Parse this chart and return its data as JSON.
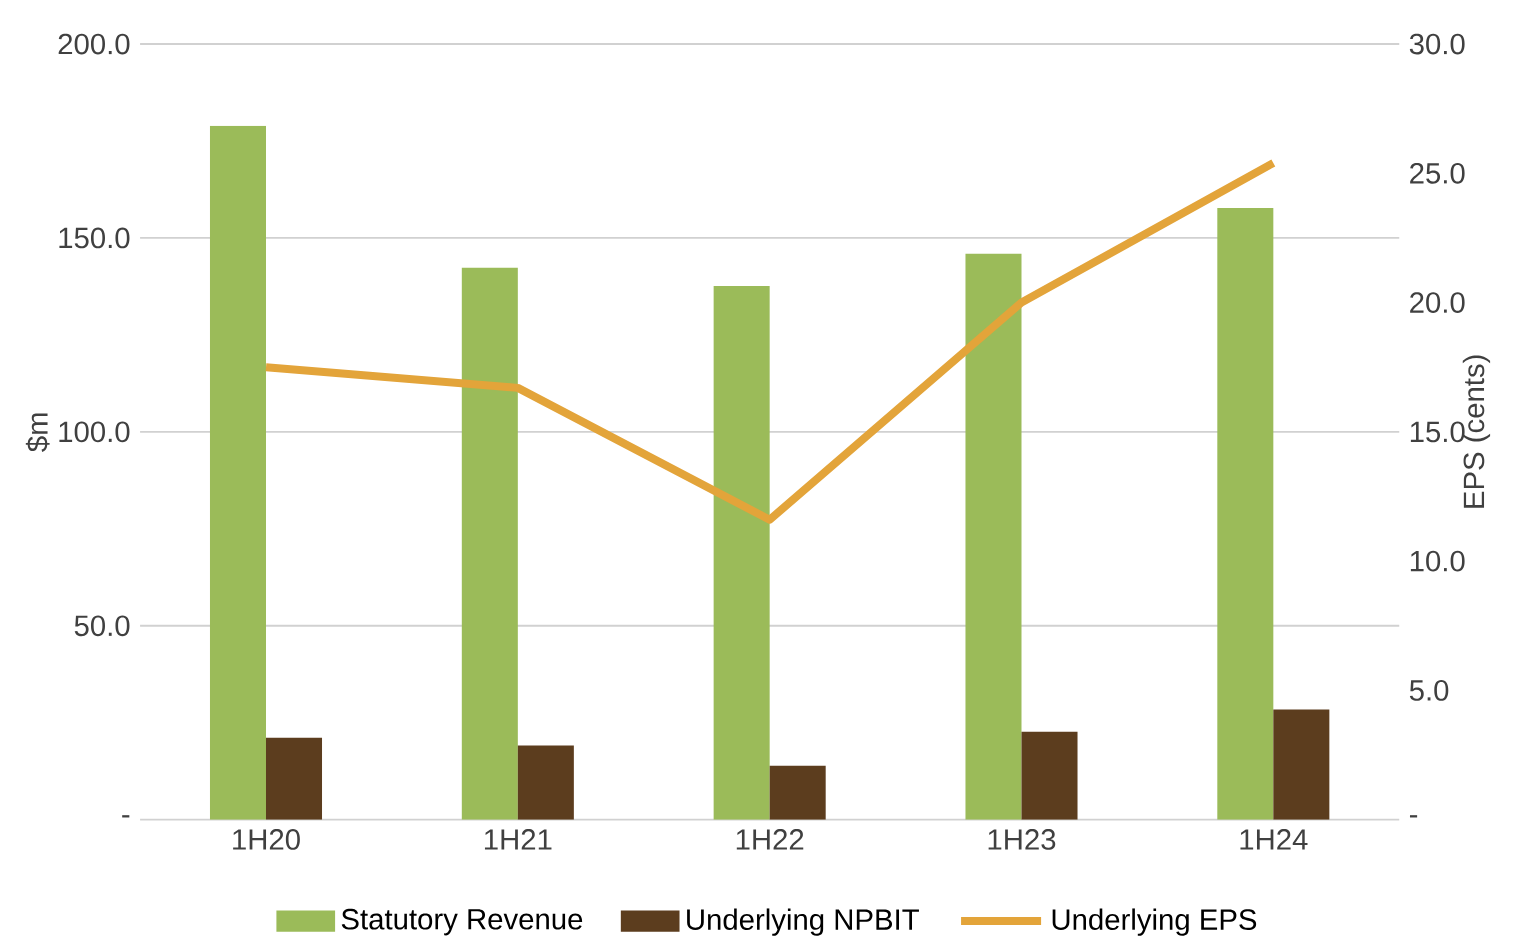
{
  "chart_data": {
    "type": "bar",
    "ylabel": "$m",
    "y2label": "EPS (cents)",
    "categories": [
      "1H20",
      "1H21",
      "1H22",
      "1H23",
      "1H24"
    ],
    "series": [
      {
        "name": "Statutory Revenue",
        "color": "#9bbb59",
        "values": [
          178.9,
          142.3,
          137.6,
          145.9,
          157.7
        ]
      },
      {
        "name": "Underlying NPBIT",
        "color": "#5c3d1e",
        "values": [
          21.1,
          19.1,
          13.9,
          22.7,
          28.4
        ]
      },
      {
        "name": "Underlying EPS",
        "color": "#e3a43a",
        "type": "line",
        "axis": "y2",
        "values": [
          17.5,
          16.7,
          11.6,
          20.0,
          25.4
        ]
      }
    ],
    "ylim": [
      0,
      200
    ],
    "yticks": [
      {
        "value": 0,
        "label": "-"
      },
      {
        "value": 50,
        "label": "50.0"
      },
      {
        "value": 100,
        "label": "100.0"
      },
      {
        "value": 150,
        "label": "150.0"
      },
      {
        "value": 200,
        "label": "200.0"
      }
    ],
    "y2lim": [
      0,
      30
    ],
    "y2ticks": [
      {
        "value": 0,
        "label": "-"
      },
      {
        "value": 5,
        "label": "5.0"
      },
      {
        "value": 10,
        "label": "10.0"
      },
      {
        "value": 15,
        "label": "15.0"
      },
      {
        "value": 20,
        "label": "20.0"
      },
      {
        "value": 25,
        "label": "25.0"
      },
      {
        "value": 30,
        "label": "30.0"
      }
    ],
    "grid": "y",
    "legend": "bottom",
    "marker": "none",
    "line_style": "solid"
  }
}
